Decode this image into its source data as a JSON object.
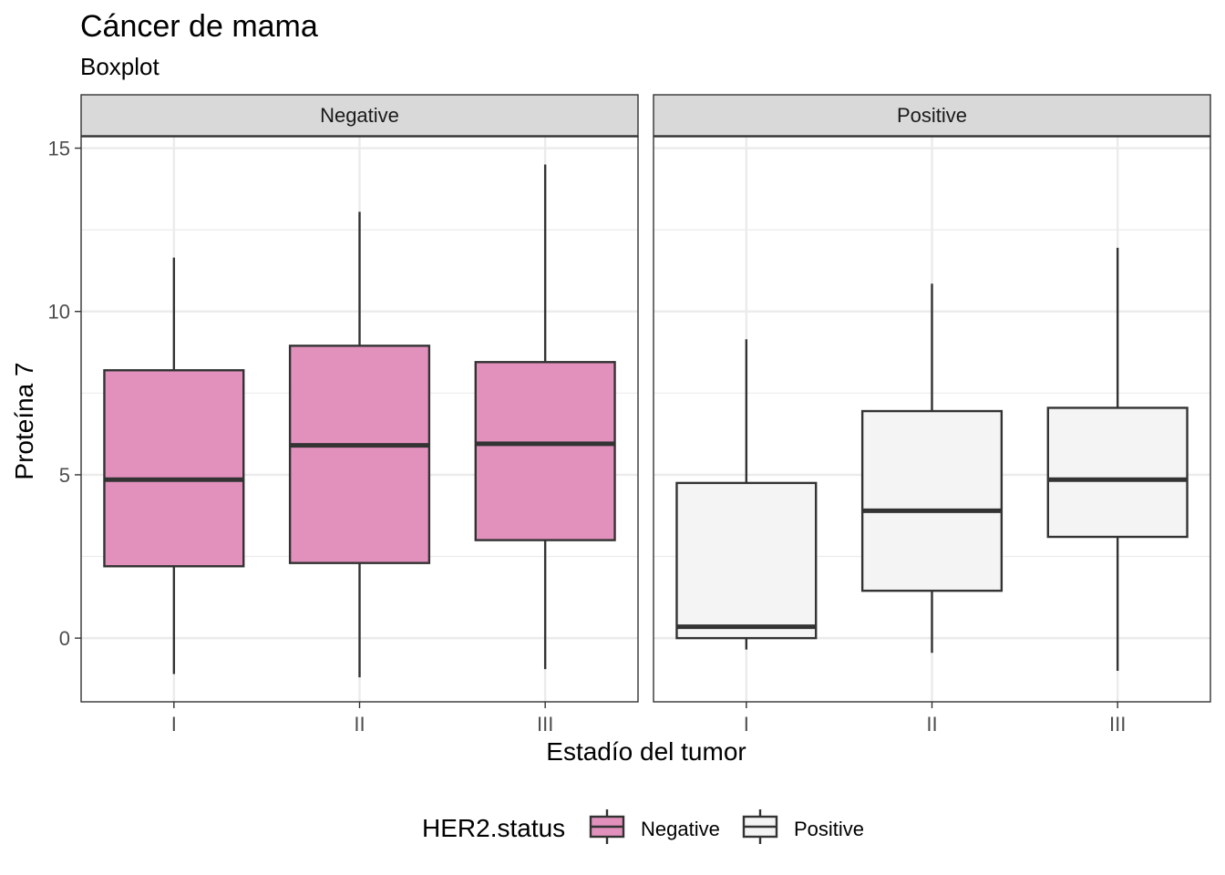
{
  "chart_data": {
    "type": "boxplot",
    "title": "Cáncer de mama",
    "subtitle": "Boxplot",
    "xlabel": "Estadío del tumor",
    "ylabel": "Proteína 7",
    "ylim": [
      -1.95,
      15.35
    ],
    "yticks": [
      0,
      5,
      10,
      15
    ],
    "categories": [
      "I",
      "II",
      "III"
    ],
    "grid": true,
    "legend": {
      "title": "HER2.status",
      "position": "bottom",
      "entries": [
        {
          "label": "Negative",
          "color": "#E291BD"
        },
        {
          "label": "Positive",
          "color": "#F4F4F4"
        }
      ]
    },
    "facets": [
      {
        "label": "Negative",
        "fill": "#E291BD",
        "boxes": [
          {
            "category": "I",
            "min": -1.1,
            "q1": 2.2,
            "median": 4.85,
            "q3": 8.2,
            "max": 11.65
          },
          {
            "category": "II",
            "min": -1.2,
            "q1": 2.3,
            "median": 5.9,
            "q3": 8.95,
            "max": 13.05
          },
          {
            "category": "III",
            "min": -0.95,
            "q1": 3.0,
            "median": 5.95,
            "q3": 8.45,
            "max": 14.5
          }
        ]
      },
      {
        "label": "Positive",
        "fill": "#F4F4F4",
        "boxes": [
          {
            "category": "I",
            "min": -0.35,
            "q1": 0.0,
            "median": 0.35,
            "q3": 4.75,
            "max": 9.15
          },
          {
            "category": "II",
            "min": -0.45,
            "q1": 1.45,
            "median": 3.9,
            "q3": 6.95,
            "max": 10.85
          },
          {
            "category": "III",
            "min": -1.0,
            "q1": 3.1,
            "median": 4.85,
            "q3": 7.05,
            "max": 11.95
          }
        ]
      }
    ]
  }
}
